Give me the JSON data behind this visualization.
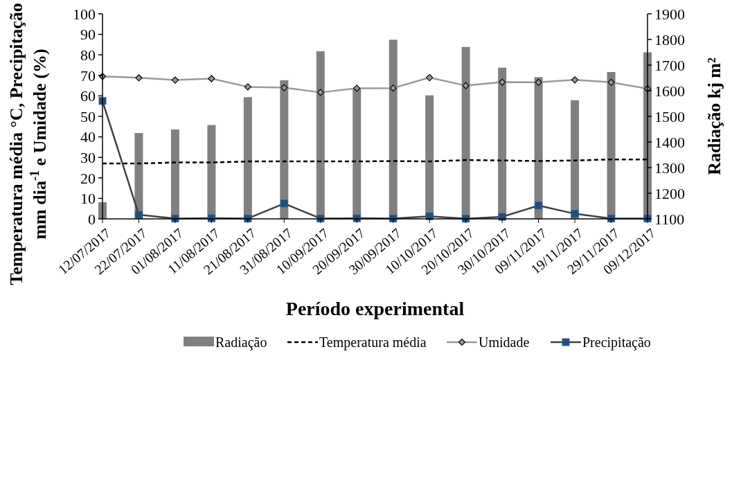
{
  "chart_data": {
    "type": "bar",
    "xlabel": "Período experimental",
    "ylabel": "Temperatura média °C,  Precipitação\nmm dia$^{-1}$ e  Umidade (%)",
    "y2label": "Radiação kj m²",
    "categories": [
      "12/07/2017",
      "22/07/2017",
      "01/08/2017",
      "11/08/2017",
      "21/08/2017",
      "31/08/2017",
      "10/09/2017",
      "20/09/2017",
      "30/09/2017",
      "10/10/2017",
      "20/10/2017",
      "30/10/2017",
      "09/11/2017",
      "19/11/2017",
      "29/11/2017",
      "09/12/2017"
    ],
    "series": [
      {
        "name": "Radiação",
        "axis": "y2",
        "color": "#808080",
        "values": [
          1165,
          1435,
          1449,
          1466,
          1575,
          1641,
          1754,
          1607,
          1799,
          1582,
          1771,
          1690,
          1653,
          1563,
          1673,
          1750
        ]
      },
      {
        "name": "Temperatura média",
        "type": "line",
        "color": "#000000",
        "line_style": "dashed",
        "marker": "none",
        "values": [
          27,
          27,
          27.5,
          27.5,
          28,
          28,
          28,
          28,
          28.2,
          28,
          28.7,
          28.5,
          28.2,
          28.5,
          29,
          29
        ]
      },
      {
        "name": "Umidade",
        "type": "line",
        "color": "#999999",
        "marker": "diamond",
        "values": [
          69.5,
          68.8,
          67.7,
          68.4,
          64.4,
          64,
          61.7,
          63.7,
          63.8,
          68.9,
          65,
          66.7,
          66.6,
          67.8,
          66.6,
          63.5
        ]
      },
      {
        "name": "Precipitação",
        "type": "line",
        "color": "#404040",
        "marker": "square",
        "values": [
          57.5,
          2,
          0.2,
          0.3,
          0.2,
          7.5,
          0.2,
          0.3,
          0.2,
          1.3,
          0.1,
          1,
          6.5,
          2.5,
          0.2,
          0.2
        ]
      }
    ],
    "ylim": [
      0,
      100
    ],
    "yticks": [
      0,
      10,
      20,
      30,
      40,
      50,
      60,
      70,
      80,
      90,
      100
    ],
    "y2lim": [
      1100,
      1900
    ],
    "y2ticks": [
      1100,
      1200,
      1300,
      1400,
      1500,
      1600,
      1700,
      1800,
      1900
    ],
    "legend": "bottom"
  }
}
